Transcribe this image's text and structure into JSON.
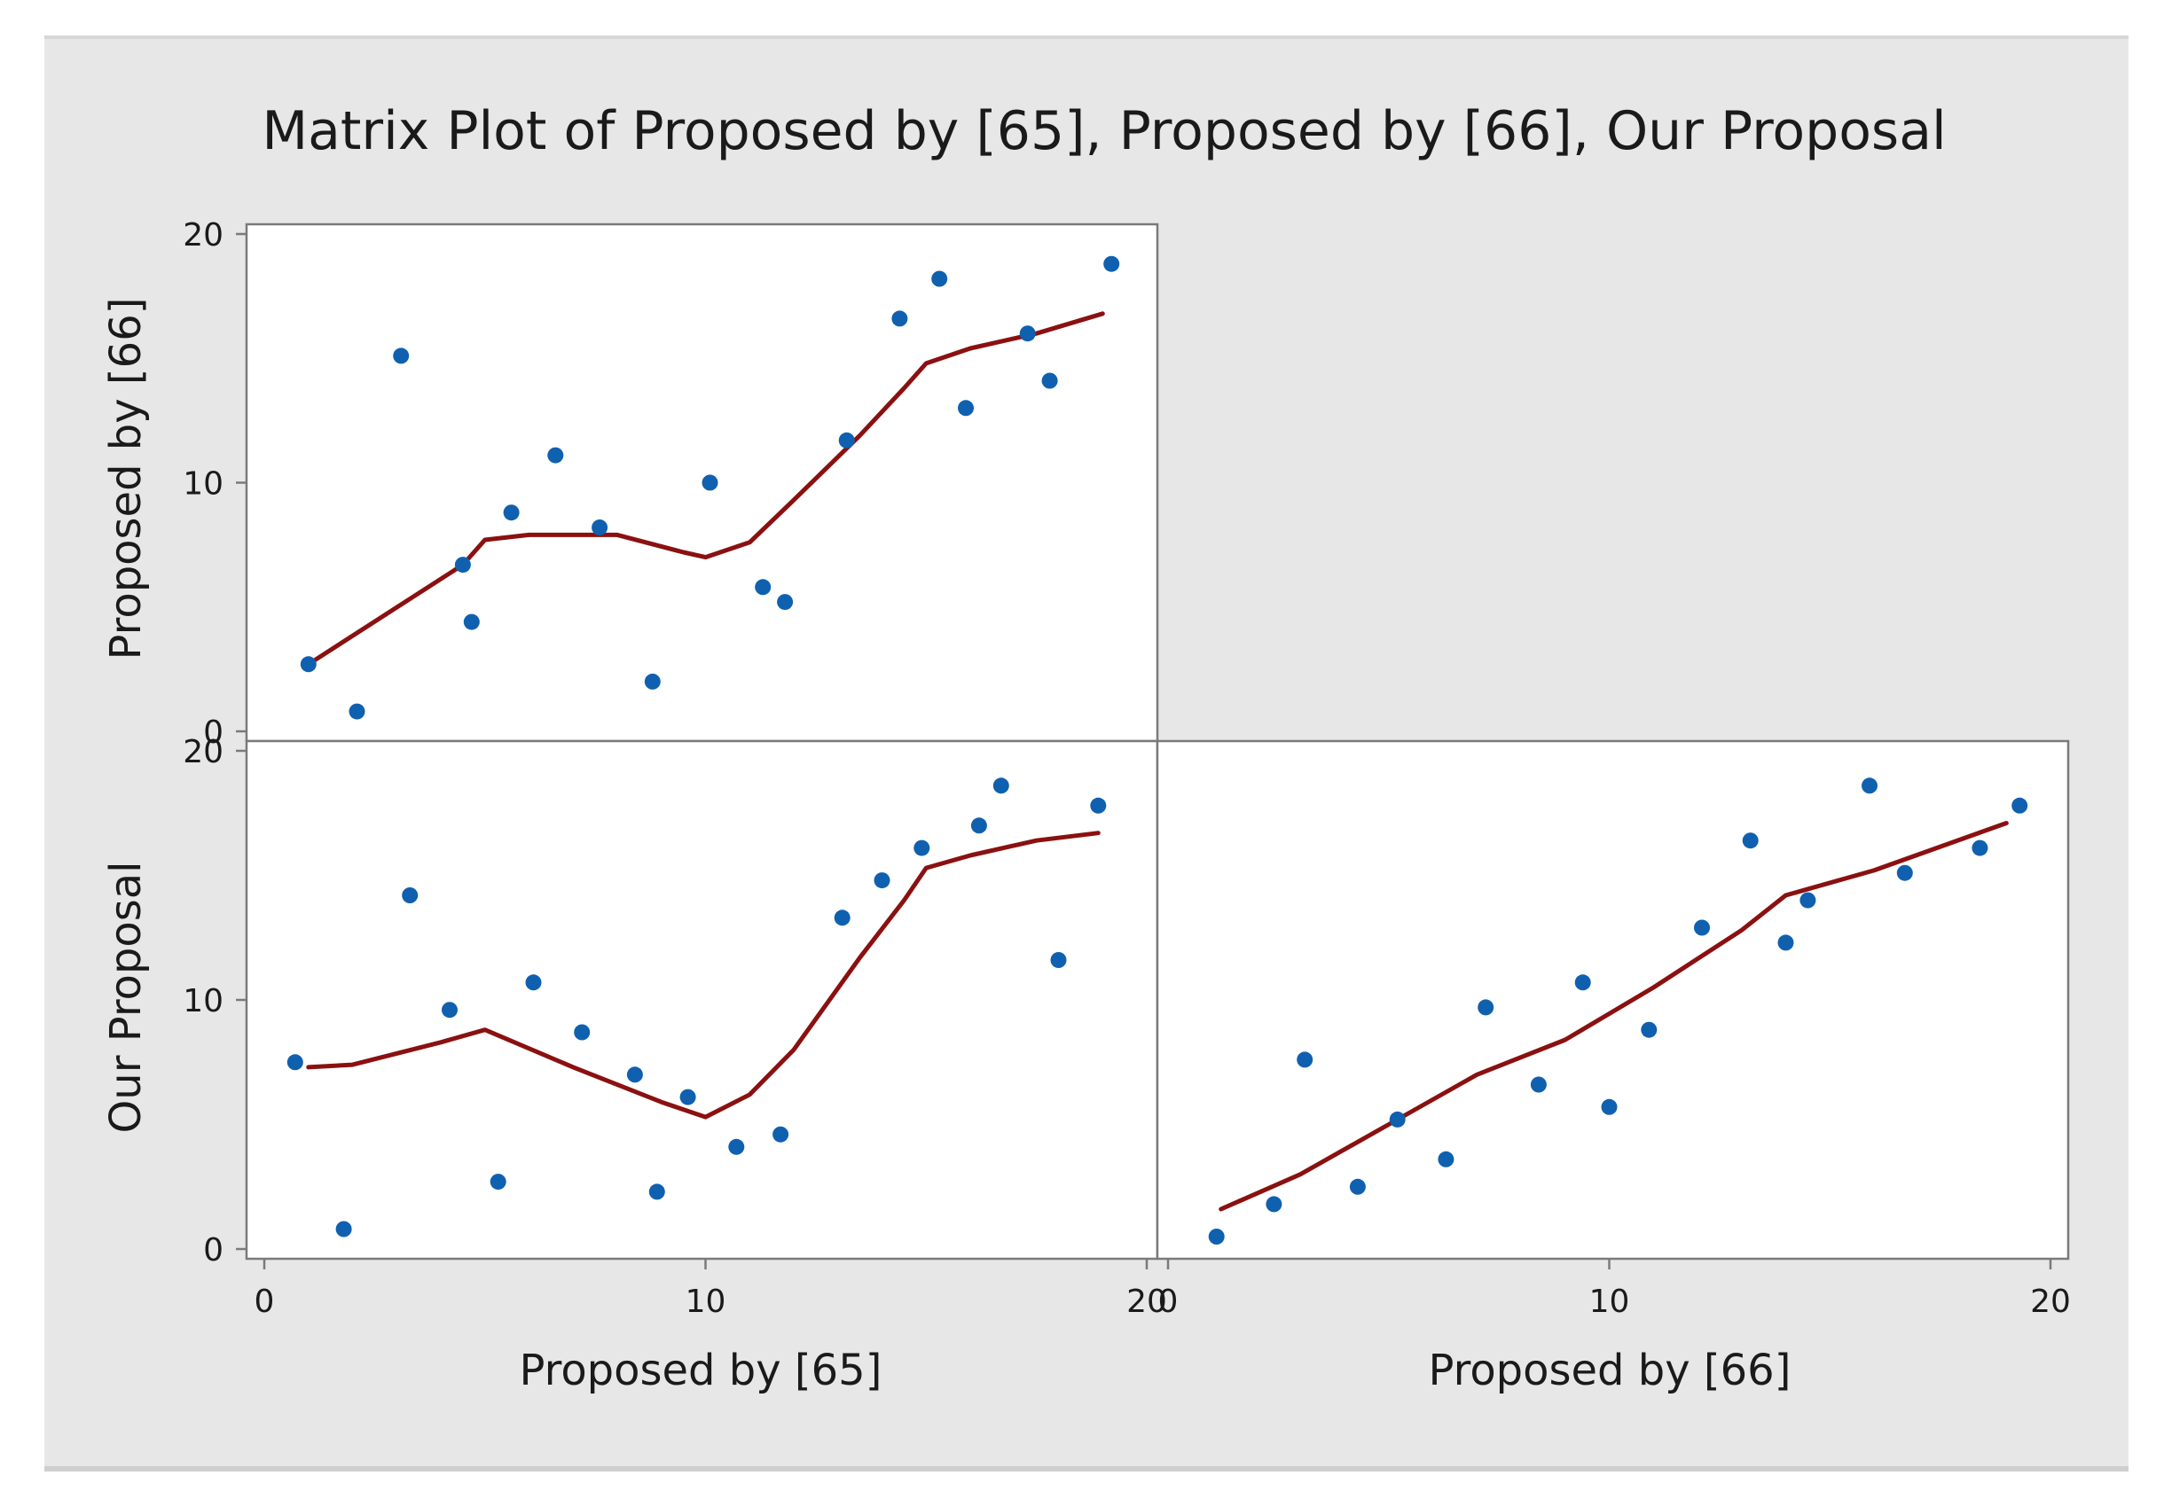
{
  "chart_data": {
    "type": "scatter",
    "title": "Matrix Plot of Proposed by [65], Proposed by [66], Our Proposal",
    "variables": [
      "Proposed by [65]",
      "Proposed by [66]",
      "Our Proposal"
    ],
    "axis_range": [
      0,
      20
    ],
    "ticks": [
      0,
      10,
      20
    ],
    "y_ticks_upper": [
      "20",
      "10",
      "0"
    ],
    "y_ticks_lower": [
      "20",
      "10",
      "0"
    ],
    "x_ticks_left": [
      "0",
      "10",
      "20"
    ],
    "x_ticks_right": [
      "0",
      "10",
      "20"
    ],
    "point_color": "#1060b0",
    "smoother_color": "#8b1010",
    "panels": [
      {
        "x_var": "Proposed by [65]",
        "y_var": "Proposed by [66]",
        "points": [
          {
            "x": 1.0,
            "y": 2.7
          },
          {
            "x": 2.1,
            "y": 0.8
          },
          {
            "x": 3.1,
            "y": 15.1
          },
          {
            "x": 4.5,
            "y": 6.7
          },
          {
            "x": 4.7,
            "y": 4.4
          },
          {
            "x": 5.6,
            "y": 8.8
          },
          {
            "x": 6.6,
            "y": 11.1
          },
          {
            "x": 7.6,
            "y": 8.2
          },
          {
            "x": 8.8,
            "y": 2.0
          },
          {
            "x": 10.1,
            "y": 10.0
          },
          {
            "x": 11.3,
            "y": 5.8
          },
          {
            "x": 11.8,
            "y": 5.2
          },
          {
            "x": 13.2,
            "y": 11.7
          },
          {
            "x": 14.4,
            "y": 16.6
          },
          {
            "x": 15.3,
            "y": 18.2
          },
          {
            "x": 15.9,
            "y": 13.0
          },
          {
            "x": 17.3,
            "y": 16.0
          },
          {
            "x": 17.8,
            "y": 14.1
          },
          {
            "x": 19.2,
            "y": 18.8
          }
        ],
        "smoother": [
          {
            "x": 1.0,
            "y": 2.7
          },
          {
            "x": 4.5,
            "y": 6.7
          },
          {
            "x": 5.0,
            "y": 7.7
          },
          {
            "x": 6.0,
            "y": 7.9
          },
          {
            "x": 8.0,
            "y": 7.9
          },
          {
            "x": 9.5,
            "y": 7.2
          },
          {
            "x": 10.0,
            "y": 7.0
          },
          {
            "x": 11.0,
            "y": 7.6
          },
          {
            "x": 12.0,
            "y": 9.3
          },
          {
            "x": 13.5,
            "y": 11.9
          },
          {
            "x": 14.5,
            "y": 13.8
          },
          {
            "x": 15.0,
            "y": 14.8
          },
          {
            "x": 16.0,
            "y": 15.4
          },
          {
            "x": 17.5,
            "y": 16.0
          },
          {
            "x": 19.0,
            "y": 16.8
          }
        ]
      },
      {
        "x_var": "Proposed by [65]",
        "y_var": "Our Proposal",
        "points": [
          {
            "x": 0.7,
            "y": 7.5
          },
          {
            "x": 1.8,
            "y": 0.8
          },
          {
            "x": 3.3,
            "y": 14.2
          },
          {
            "x": 4.2,
            "y": 9.6
          },
          {
            "x": 5.3,
            "y": 2.7
          },
          {
            "x": 6.1,
            "y": 10.7
          },
          {
            "x": 7.2,
            "y": 8.7
          },
          {
            "x": 8.4,
            "y": 7.0
          },
          {
            "x": 8.9,
            "y": 2.3
          },
          {
            "x": 9.6,
            "y": 6.1
          },
          {
            "x": 10.7,
            "y": 4.1
          },
          {
            "x": 11.7,
            "y": 4.6
          },
          {
            "x": 13.1,
            "y": 13.3
          },
          {
            "x": 14.0,
            "y": 14.8
          },
          {
            "x": 14.9,
            "y": 16.1
          },
          {
            "x": 16.2,
            "y": 17.0
          },
          {
            "x": 16.7,
            "y": 18.6
          },
          {
            "x": 18.0,
            "y": 11.6
          },
          {
            "x": 18.9,
            "y": 17.8
          }
        ],
        "smoother": [
          {
            "x": 1.0,
            "y": 7.3
          },
          {
            "x": 2.0,
            "y": 7.4
          },
          {
            "x": 4.0,
            "y": 8.3
          },
          {
            "x": 5.0,
            "y": 8.8
          },
          {
            "x": 7.0,
            "y": 7.3
          },
          {
            "x": 9.0,
            "y": 5.9
          },
          {
            "x": 10.0,
            "y": 5.3
          },
          {
            "x": 11.0,
            "y": 6.2
          },
          {
            "x": 12.0,
            "y": 8.0
          },
          {
            "x": 13.5,
            "y": 11.7
          },
          {
            "x": 14.5,
            "y": 14.0
          },
          {
            "x": 15.0,
            "y": 15.3
          },
          {
            "x": 16.0,
            "y": 15.8
          },
          {
            "x": 17.5,
            "y": 16.4
          },
          {
            "x": 18.9,
            "y": 16.7
          }
        ]
      },
      {
        "x_var": "Proposed by [66]",
        "y_var": "Our Proposal",
        "points": [
          {
            "x": 1.1,
            "y": 0.5
          },
          {
            "x": 2.4,
            "y": 1.8
          },
          {
            "x": 3.1,
            "y": 7.6
          },
          {
            "x": 4.3,
            "y": 2.5
          },
          {
            "x": 5.2,
            "y": 5.2
          },
          {
            "x": 6.3,
            "y": 3.6
          },
          {
            "x": 7.2,
            "y": 9.7
          },
          {
            "x": 8.4,
            "y": 6.6
          },
          {
            "x": 9.4,
            "y": 10.7
          },
          {
            "x": 10.0,
            "y": 5.7
          },
          {
            "x": 10.9,
            "y": 8.8
          },
          {
            "x": 12.1,
            "y": 12.9
          },
          {
            "x": 13.2,
            "y": 16.4
          },
          {
            "x": 14.0,
            "y": 12.3
          },
          {
            "x": 14.5,
            "y": 14.0
          },
          {
            "x": 15.9,
            "y": 18.6
          },
          {
            "x": 16.7,
            "y": 15.1
          },
          {
            "x": 18.4,
            "y": 16.1
          },
          {
            "x": 19.3,
            "y": 17.8
          }
        ],
        "smoother": [
          {
            "x": 1.2,
            "y": 1.6
          },
          {
            "x": 3.0,
            "y": 3.0
          },
          {
            "x": 5.0,
            "y": 5.0
          },
          {
            "x": 7.0,
            "y": 7.0
          },
          {
            "x": 9.0,
            "y": 8.4
          },
          {
            "x": 11.0,
            "y": 10.5
          },
          {
            "x": 13.0,
            "y": 12.8
          },
          {
            "x": 14.0,
            "y": 14.2
          },
          {
            "x": 16.0,
            "y": 15.2
          },
          {
            "x": 19.0,
            "y": 17.1
          }
        ]
      }
    ]
  }
}
